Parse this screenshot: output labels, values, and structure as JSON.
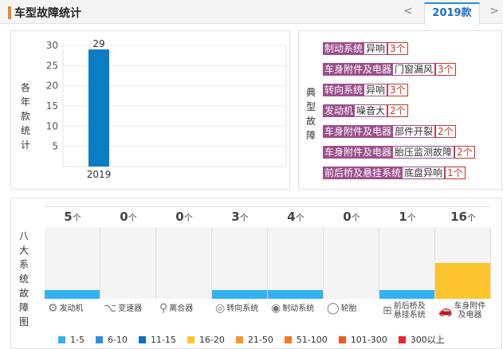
{
  "header": {
    "title": "车型故障统计",
    "prev": "<",
    "year_tab": "2019款",
    "next": ">"
  },
  "year_panel": {
    "vertical_label": "各年款统计",
    "yticks": [
      "30",
      "25",
      "20",
      "15",
      "10",
      "5"
    ],
    "bar_value_label": "29",
    "bar_category": "2019"
  },
  "chart_data": {
    "type": "bar",
    "categories": [
      "2019"
    ],
    "values": [
      29
    ],
    "title": "",
    "xlabel": "",
    "ylabel": "各年款统计",
    "ylim": [
      0,
      30
    ],
    "grid": true,
    "color": "#0c7cc4"
  },
  "faults_panel": {
    "vertical_label": "典型故障",
    "items": [
      {
        "category": "制动系统",
        "type": "异响",
        "count": "3个"
      },
      {
        "category": "车身附件及电器",
        "type": "门窗漏风",
        "count": "3个"
      },
      {
        "category": "转向系统",
        "type": "异响",
        "count": "3个"
      },
      {
        "category": "发动机",
        "type": "噪音大",
        "count": "2个"
      },
      {
        "category": "车身附件及电器",
        "type": "部件开裂",
        "count": "2个"
      },
      {
        "category": "车身附件及电器",
        "type": "胎压监测故障",
        "count": "2个"
      },
      {
        "category": "前后桥及悬挂系统",
        "type": "底盘异响",
        "count": "1个"
      }
    ]
  },
  "systems_panel": {
    "vertical_label": "八大系统故障图",
    "unit": "个",
    "systems": [
      {
        "name": "发动机",
        "count": "5",
        "icon": "engine-icon",
        "fill_color": "#33b1f0",
        "fill_level": 0.12
      },
      {
        "name": "变速器",
        "count": "0",
        "icon": "gearbox-icon",
        "fill_color": "#33b1f0",
        "fill_level": 0
      },
      {
        "name": "离合器",
        "count": "0",
        "icon": "clutch-icon",
        "fill_color": "#33b1f0",
        "fill_level": 0
      },
      {
        "name": "转向系统",
        "count": "3",
        "icon": "steering-icon",
        "fill_color": "#33b1f0",
        "fill_level": 0.12
      },
      {
        "name": "制动系统",
        "count": "4",
        "icon": "brake-icon",
        "fill_color": "#33b1f0",
        "fill_level": 0.12
      },
      {
        "name": "轮胎",
        "count": "0",
        "icon": "tire-icon",
        "fill_color": "#33b1f0",
        "fill_level": 0
      },
      {
        "name": "前后桥及\n悬挂系统",
        "count": "1",
        "icon": "suspension-icon",
        "fill_color": "#33b1f0",
        "fill_level": 0.12
      },
      {
        "name": "车身附件\n及电器",
        "count": "16",
        "icon": "body-electric-icon",
        "fill_color": "#fcc52d",
        "fill_level": 0.5
      }
    ],
    "legend": [
      {
        "label": "1-5",
        "color": "#33b1f0"
      },
      {
        "label": "6-10",
        "color": "#2c8fe6"
      },
      {
        "label": "11-15",
        "color": "#0a72c2"
      },
      {
        "label": "16-20",
        "color": "#fcc52d"
      },
      {
        "label": "21-50",
        "color": "#f5982a"
      },
      {
        "label": "51-100",
        "color": "#f47a28"
      },
      {
        "label": "101-300",
        "color": "#f05a1e"
      },
      {
        "label": "300以上",
        "color": "#e8252d"
      }
    ]
  }
}
